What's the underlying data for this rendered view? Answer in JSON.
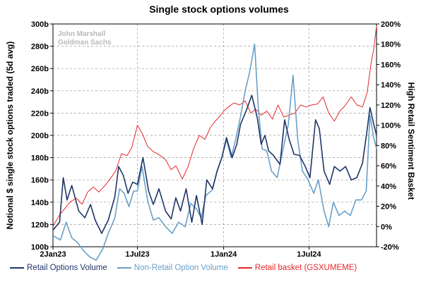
{
  "chart_data": {
    "type": "line",
    "title": "Single stock options volumes",
    "ylabel_left": "Notional $ single stock options traded (5d avg)",
    "ylabel_right": "High Retail Sentiment Basket",
    "watermark": [
      "John Marshall",
      "Goldman Sachs"
    ],
    "x_tick_labels": [
      "2Jan23",
      "1Jul23",
      "1Jan24",
      "1Jul24"
    ],
    "x_tick_days": [
      0,
      180,
      364,
      546
    ],
    "x_range_days": [
      0,
      690
    ],
    "ylim_left": [
      100,
      300
    ],
    "yticks_left": [
      "100b",
      "120b",
      "140b",
      "160b",
      "180b",
      "200b",
      "220b",
      "240b",
      "260b",
      "280b",
      "300b"
    ],
    "ylim_right": [
      -20,
      200
    ],
    "yticks_right": [
      "-20%",
      "0%",
      "20%",
      "40%",
      "60%",
      "80%",
      "100%",
      "120%",
      "140%",
      "160%",
      "180%",
      "200%"
    ],
    "grid": true,
    "legend_position": "bottom",
    "series": [
      {
        "name": "Retail Options Volume",
        "axis": "left",
        "color": "#1f3668",
        "points": [
          [
            0,
            115
          ],
          [
            14,
            122
          ],
          [
            22,
            162
          ],
          [
            30,
            142
          ],
          [
            40,
            155
          ],
          [
            55,
            132
          ],
          [
            68,
            126
          ],
          [
            80,
            138
          ],
          [
            90,
            124
          ],
          [
            104,
            112
          ],
          [
            118,
            124
          ],
          [
            132,
            145
          ],
          [
            140,
            172
          ],
          [
            150,
            164
          ],
          [
            160,
            148
          ],
          [
            170,
            158
          ],
          [
            180,
            156
          ],
          [
            192,
            180
          ],
          [
            204,
            150
          ],
          [
            214,
            138
          ],
          [
            226,
            152
          ],
          [
            240,
            132
          ],
          [
            252,
            125
          ],
          [
            262,
            144
          ],
          [
            272,
            132
          ],
          [
            284,
            152
          ],
          [
            296,
            122
          ],
          [
            306,
            146
          ],
          [
            318,
            120
          ],
          [
            328,
            160
          ],
          [
            340,
            152
          ],
          [
            350,
            168
          ],
          [
            360,
            180
          ],
          [
            370,
            198
          ],
          [
            382,
            180
          ],
          [
            392,
            192
          ],
          [
            400,
            210
          ],
          [
            412,
            222
          ],
          [
            424,
            236
          ],
          [
            436,
            215
          ],
          [
            444,
            192
          ],
          [
            452,
            200
          ],
          [
            460,
            186
          ],
          [
            470,
            182
          ],
          [
            484,
            174
          ],
          [
            494,
            214
          ],
          [
            504,
            196
          ],
          [
            514,
            183
          ],
          [
            526,
            182
          ],
          [
            538,
            172
          ],
          [
            548,
            162
          ],
          [
            560,
            214
          ],
          [
            568,
            206
          ],
          [
            578,
            168
          ],
          [
            590,
            156
          ],
          [
            600,
            172
          ],
          [
            612,
            168
          ],
          [
            624,
            172
          ],
          [
            636,
            160
          ],
          [
            648,
            162
          ],
          [
            660,
            175
          ],
          [
            670,
            205
          ],
          [
            676,
            225
          ],
          [
            684,
            210
          ],
          [
            690,
            200
          ]
        ]
      },
      {
        "name": "Non-Retail Option Volume",
        "axis": "left",
        "color": "#6aa0c8",
        "points": [
          [
            0,
            110
          ],
          [
            16,
            106
          ],
          [
            28,
            122
          ],
          [
            40,
            108
          ],
          [
            52,
            104
          ],
          [
            66,
            96
          ],
          [
            78,
            91
          ],
          [
            92,
            88
          ],
          [
            106,
            98
          ],
          [
            118,
            112
          ],
          [
            132,
            126
          ],
          [
            142,
            152
          ],
          [
            152,
            148
          ],
          [
            162,
            136
          ],
          [
            172,
            150
          ],
          [
            180,
            150
          ],
          [
            190,
            172
          ],
          [
            202,
            141
          ],
          [
            214,
            124
          ],
          [
            226,
            126
          ],
          [
            240,
            118
          ],
          [
            254,
            112
          ],
          [
            268,
            122
          ],
          [
            282,
            118
          ],
          [
            294,
            139
          ],
          [
            306,
            134
          ],
          [
            316,
            126
          ],
          [
            326,
            146
          ],
          [
            340,
            151
          ],
          [
            350,
            168
          ],
          [
            360,
            180
          ],
          [
            370,
            196
          ],
          [
            380,
            180
          ],
          [
            390,
            197
          ],
          [
            400,
            217
          ],
          [
            410,
            240
          ],
          [
            420,
            258
          ],
          [
            430,
            282
          ],
          [
            438,
            224
          ],
          [
            446,
            188
          ],
          [
            456,
            186
          ],
          [
            466,
            168
          ],
          [
            478,
            162
          ],
          [
            490,
            186
          ],
          [
            502,
            210
          ],
          [
            512,
            254
          ],
          [
            522,
            196
          ],
          [
            532,
            168
          ],
          [
            544,
            160
          ],
          [
            556,
            148
          ],
          [
            566,
            160
          ],
          [
            578,
            132
          ],
          [
            588,
            118
          ],
          [
            598,
            140
          ],
          [
            610,
            128
          ],
          [
            622,
            132
          ],
          [
            634,
            128
          ],
          [
            646,
            142
          ],
          [
            658,
            142
          ],
          [
            668,
            150
          ],
          [
            676,
            218
          ],
          [
            684,
            198
          ],
          [
            690,
            188
          ]
        ]
      },
      {
        "name": "Retail basket (GSXUMEME)",
        "axis": "right",
        "color": "#e8282b",
        "points": [
          [
            0,
            0
          ],
          [
            12,
            10
          ],
          [
            22,
            16
          ],
          [
            36,
            24
          ],
          [
            50,
            28
          ],
          [
            62,
            22
          ],
          [
            74,
            34
          ],
          [
            86,
            39
          ],
          [
            98,
            34
          ],
          [
            110,
            40
          ],
          [
            122,
            47
          ],
          [
            134,
            55
          ],
          [
            146,
            72
          ],
          [
            158,
            70
          ],
          [
            168,
            78
          ],
          [
            180,
            100
          ],
          [
            190,
            92
          ],
          [
            202,
            79
          ],
          [
            214,
            74
          ],
          [
            226,
            71
          ],
          [
            240,
            66
          ],
          [
            252,
            56
          ],
          [
            262,
            60
          ],
          [
            276,
            47
          ],
          [
            288,
            59
          ],
          [
            300,
            77
          ],
          [
            312,
            90
          ],
          [
            324,
            86
          ],
          [
            336,
            98
          ],
          [
            346,
            104
          ],
          [
            356,
            109
          ],
          [
            364,
            114
          ],
          [
            374,
            118
          ],
          [
            386,
            122
          ],
          [
            398,
            120
          ],
          [
            410,
            124
          ],
          [
            422,
            112
          ],
          [
            432,
            116
          ],
          [
            444,
            110
          ],
          [
            456,
            114
          ],
          [
            468,
            106
          ],
          [
            480,
            120
          ],
          [
            492,
            108
          ],
          [
            504,
            110
          ],
          [
            516,
            112
          ],
          [
            528,
            120
          ],
          [
            540,
            118
          ],
          [
            552,
            120
          ],
          [
            564,
            121
          ],
          [
            576,
            128
          ],
          [
            588,
            112
          ],
          [
            600,
            104
          ],
          [
            612,
            114
          ],
          [
            624,
            120
          ],
          [
            636,
            128
          ],
          [
            648,
            120
          ],
          [
            660,
            118
          ],
          [
            670,
            132
          ],
          [
            678,
            160
          ],
          [
            684,
            175
          ],
          [
            690,
            198
          ]
        ]
      }
    ]
  }
}
